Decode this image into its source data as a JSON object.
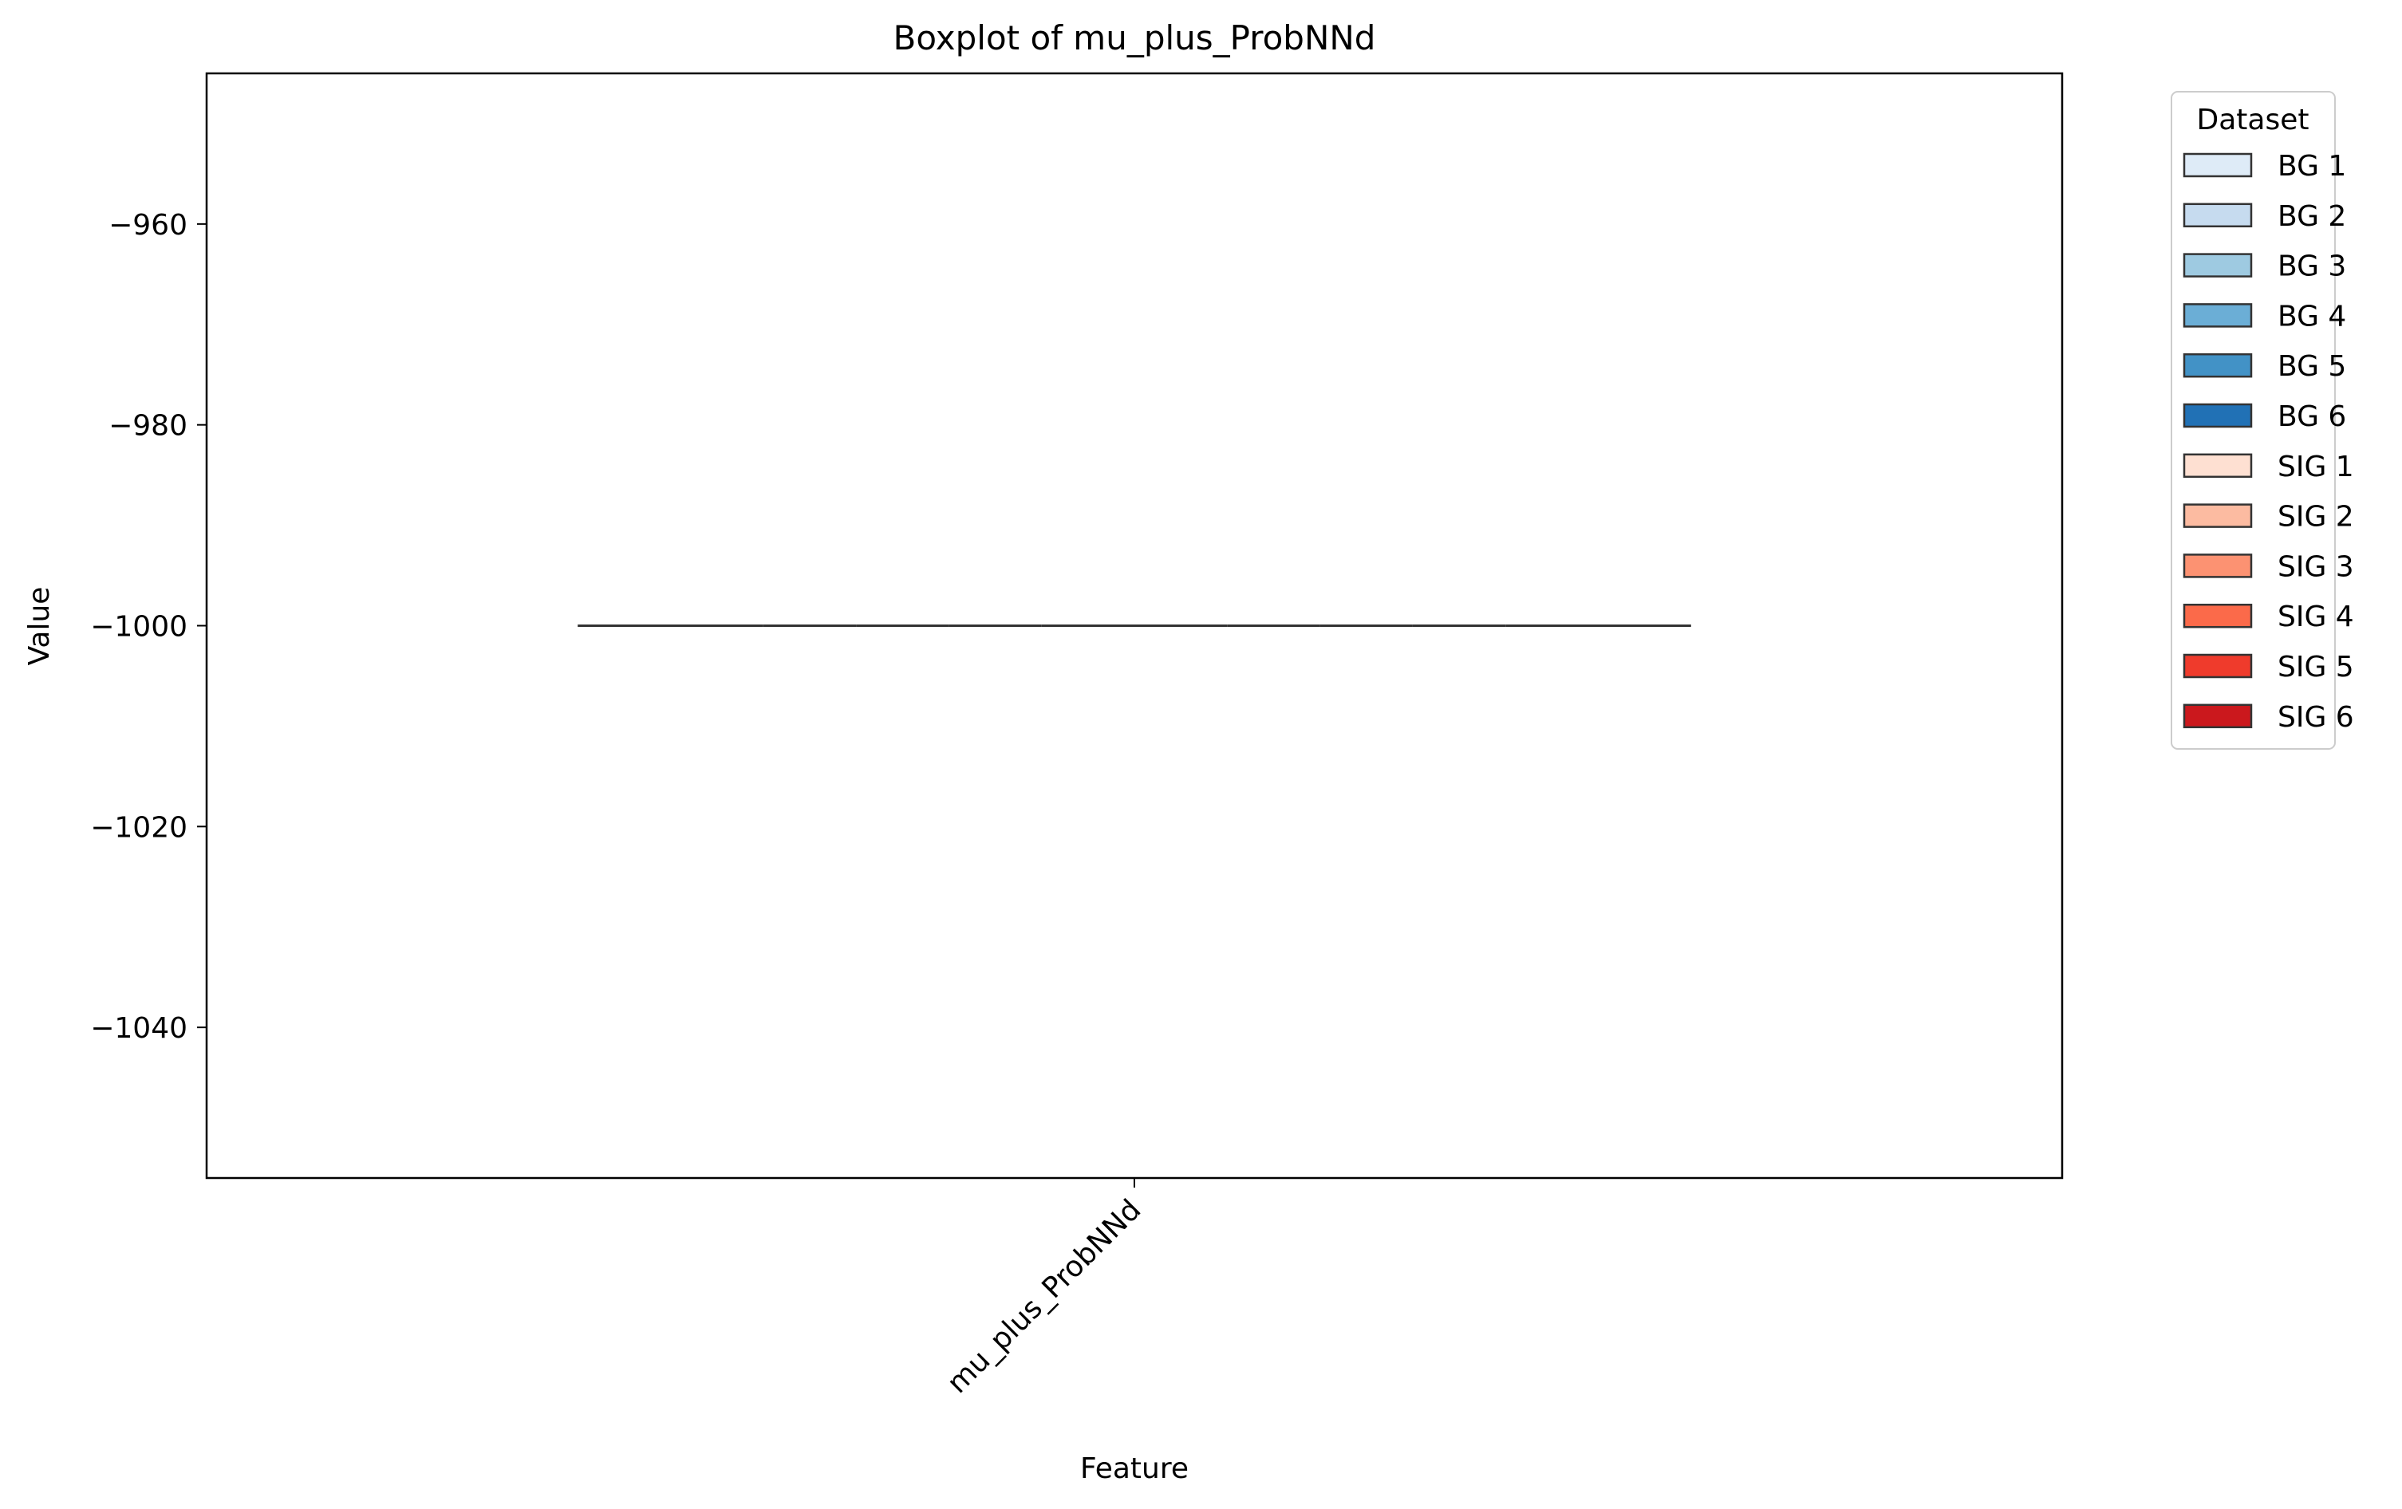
{
  "chart_data": {
    "type": "box",
    "title": "Boxplot of mu_plus_ProbNNd",
    "xlabel": "Feature",
    "ylabel": "Value",
    "categories": [
      "mu_plus_ProbNNd"
    ],
    "ylim": [
      -1055,
      -945
    ],
    "yticks": [
      -960,
      -980,
      -1000,
      -1020,
      -1040
    ],
    "ytick_labels": [
      "−960",
      "−980",
      "−1000",
      "−1020",
      "−1040"
    ],
    "grid": false,
    "legend": {
      "title": "Dataset",
      "position": "outside-right-top",
      "entries": [
        "BG 1",
        "BG 2",
        "BG 3",
        "BG 4",
        "BG 5",
        "BG 6",
        "SIG 1",
        "SIG 2",
        "SIG 3",
        "SIG 4",
        "SIG 5",
        "SIG 6"
      ]
    },
    "series": [
      {
        "name": "BG 1",
        "color": "#deebf7",
        "min": -1000,
        "q1": -1000,
        "median": -1000,
        "q3": -1000,
        "max": -1000
      },
      {
        "name": "BG 2",
        "color": "#c6dbef",
        "min": -1000,
        "q1": -1000,
        "median": -1000,
        "q3": -1000,
        "max": -1000
      },
      {
        "name": "BG 3",
        "color": "#9ecae1",
        "min": -1000,
        "q1": -1000,
        "median": -1000,
        "q3": -1000,
        "max": -1000
      },
      {
        "name": "BG 4",
        "color": "#6baed6",
        "min": -1000,
        "q1": -1000,
        "median": -1000,
        "q3": -1000,
        "max": -1000
      },
      {
        "name": "BG 5",
        "color": "#4292c6",
        "min": -1000,
        "q1": -1000,
        "median": -1000,
        "q3": -1000,
        "max": -1000
      },
      {
        "name": "BG 6",
        "color": "#2171b5",
        "min": -1000,
        "q1": -1000,
        "median": -1000,
        "q3": -1000,
        "max": -1000
      },
      {
        "name": "SIG 1",
        "color": "#fee0d2",
        "min": -1000,
        "q1": -1000,
        "median": -1000,
        "q3": -1000,
        "max": -1000
      },
      {
        "name": "SIG 2",
        "color": "#fcbba1",
        "min": -1000,
        "q1": -1000,
        "median": -1000,
        "q3": -1000,
        "max": -1000
      },
      {
        "name": "SIG 3",
        "color": "#fc9272",
        "min": -1000,
        "q1": -1000,
        "median": -1000,
        "q3": -1000,
        "max": -1000
      },
      {
        "name": "SIG 4",
        "color": "#fb6a4a",
        "min": -1000,
        "q1": -1000,
        "median": -1000,
        "q3": -1000,
        "max": -1000
      },
      {
        "name": "SIG 5",
        "color": "#ef3b2c",
        "min": -1000,
        "q1": -1000,
        "median": -1000,
        "q3": -1000,
        "max": -1000
      },
      {
        "name": "SIG 6",
        "color": "#cb181d",
        "min": -1000,
        "q1": -1000,
        "median": -1000,
        "q3": -1000,
        "max": -1000
      }
    ]
  }
}
